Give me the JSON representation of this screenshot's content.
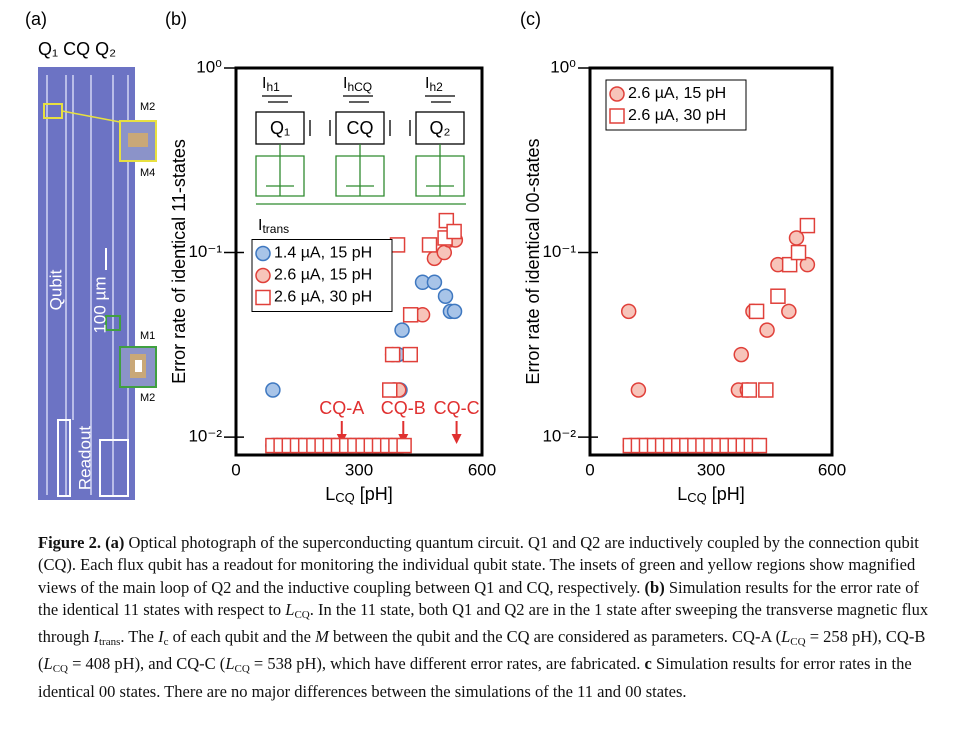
{
  "figure_labels": {
    "a": "(a)",
    "b": "(b)",
    "c": "(c)"
  },
  "photo": {
    "header": "Q₁ CQ Q₂",
    "insets": [
      "M2",
      "M4",
      "M1",
      "M2"
    ],
    "qubit": "Qubit",
    "scale": "100 µm",
    "readout": "Readout"
  },
  "circuit": {
    "bias": [
      {
        "symbol": "I",
        "sub": "h1"
      },
      {
        "symbol": "I",
        "sub": "hCQ"
      },
      {
        "symbol": "I",
        "sub": "h2"
      }
    ],
    "qubits": [
      "Q₁",
      "CQ",
      "Q₂"
    ],
    "transverse": {
      "symbol": "I",
      "sub": "trans"
    }
  },
  "chart_data": [
    {
      "type": "scatter",
      "ylabel": "Error rate of identical 11-states",
      "xlabel": {
        "symbol": "L",
        "sub": "CQ",
        "unit": "[pH]"
      },
      "xlim": [
        0,
        600
      ],
      "xticks": [
        0,
        300,
        600
      ],
      "yscale": "log",
      "ylim": [
        0.008,
        1
      ],
      "yticks": [
        {
          "value": 1,
          "label": "10⁰"
        },
        {
          "value": 0.1,
          "label": "10⁻¹"
        },
        {
          "value": 0.01,
          "label": "10⁻²"
        }
      ],
      "legend": "middle-left",
      "series": [
        {
          "name": "1.4 µA, 15 pH",
          "marker": "circle",
          "color": "#3f78c0",
          "fill": "#a8c4e8",
          "x": [
            90,
            110,
            130,
            150,
            170,
            190,
            210,
            230,
            250,
            270,
            290,
            310,
            330,
            350,
            370,
            390,
            90,
            385,
            400,
            395,
            405,
            455,
            484,
            511,
            523,
            533
          ],
          "values": [
            0.009,
            0.009,
            0.009,
            0.009,
            0.009,
            0.009,
            0.009,
            0.009,
            0.009,
            0.009,
            0.009,
            0.009,
            0.009,
            0.009,
            0.009,
            0.009,
            0.018,
            0.018,
            0.018,
            0.028,
            0.038,
            0.069,
            0.069,
            0.058,
            0.048,
            0.048
          ]
        },
        {
          "name": "2.6 µA, 15 pH",
          "marker": "circle",
          "color": "#e0403a",
          "fill": "#f7c4ba",
          "x": [
            100,
            120,
            140,
            160,
            180,
            200,
            220,
            240,
            260,
            280,
            300,
            320,
            340,
            360,
            380,
            400,
            382,
            387,
            397,
            455,
            484,
            508,
            520,
            535
          ],
          "values": [
            0.009,
            0.009,
            0.009,
            0.009,
            0.009,
            0.009,
            0.009,
            0.009,
            0.009,
            0.009,
            0.009,
            0.009,
            0.009,
            0.009,
            0.009,
            0.009,
            0.028,
            0.018,
            0.018,
            0.046,
            0.093,
            0.1,
            0.117,
            0.117
          ]
        },
        {
          "name": "2.6 µA, 30 pH",
          "marker": "square",
          "color": "#e0403a",
          "fill": "#ffffff",
          "x": [
            90,
            110,
            130,
            150,
            170,
            190,
            210,
            230,
            250,
            270,
            290,
            310,
            330,
            350,
            370,
            390,
            410,
            375,
            382,
            425,
            426,
            394,
            472,
            513,
            510,
            532
          ],
          "values": [
            0.009,
            0.009,
            0.009,
            0.009,
            0.009,
            0.009,
            0.009,
            0.009,
            0.009,
            0.009,
            0.009,
            0.009,
            0.009,
            0.009,
            0.009,
            0.009,
            0.009,
            0.018,
            0.028,
            0.028,
            0.046,
            0.11,
            0.11,
            0.149,
            0.12,
            0.13
          ]
        }
      ],
      "annotation_color": "#e03030",
      "annotations": [
        {
          "text": "CQ-A",
          "x": 258
        },
        {
          "text": "CQ-B",
          "x": 408
        },
        {
          "text": "CQ-C",
          "x": 538
        }
      ]
    },
    {
      "type": "scatter",
      "ylabel": "Error rate of identical 00-states",
      "xlabel": {
        "symbol": "L",
        "sub": "CQ",
        "unit": "[pH]"
      },
      "xlim": [
        0,
        600
      ],
      "xticks": [
        0,
        300,
        600
      ],
      "yscale": "log",
      "ylim": [
        0.008,
        1
      ],
      "yticks": [
        {
          "value": 1,
          "label": "10⁰"
        },
        {
          "value": 0.1,
          "label": "10⁻¹"
        },
        {
          "value": 0.01,
          "label": "10⁻²"
        }
      ],
      "legend": "upper-left",
      "series": [
        {
          "name": "2.6 µA, 15 pH",
          "marker": "circle",
          "color": "#e0403a",
          "fill": "#f7c4ba",
          "x": [
            100,
            120,
            140,
            160,
            180,
            200,
            220,
            240,
            260,
            280,
            300,
            320,
            340,
            360,
            380,
            96,
            120,
            375,
            368,
            390,
            404,
            439,
            493,
            466,
            512,
            539
          ],
          "values": [
            0.009,
            0.009,
            0.009,
            0.009,
            0.009,
            0.009,
            0.009,
            0.009,
            0.009,
            0.009,
            0.009,
            0.009,
            0.009,
            0.009,
            0.009,
            0.048,
            0.018,
            0.028,
            0.018,
            0.018,
            0.048,
            0.038,
            0.048,
            0.086,
            0.12,
            0.086
          ]
        },
        {
          "name": "2.6 µA, 30 pH",
          "marker": "square",
          "color": "#e0403a",
          "fill": "#ffffff",
          "x": [
            100,
            120,
            140,
            160,
            180,
            200,
            220,
            240,
            260,
            280,
            300,
            320,
            340,
            360,
            380,
            400,
            420,
            466,
            495,
            517,
            539,
            413,
            436,
            395
          ],
          "values": [
            0.009,
            0.009,
            0.009,
            0.009,
            0.009,
            0.009,
            0.009,
            0.009,
            0.009,
            0.009,
            0.009,
            0.009,
            0.009,
            0.009,
            0.009,
            0.009,
            0.009,
            0.058,
            0.086,
            0.1,
            0.14,
            0.048,
            0.018,
            0.018
          ]
        }
      ]
    }
  ],
  "caption": [
    "Figure 2.",
    "(a)",
    " Optical photograph of the superconducting quantum circuit. Q1 and Q2 are inductively coupled by the connection qubit (CQ). Each flux qubit has a readout for monitoring the individual qubit state. The insets of green and yellow regions show magnified views of the main loop of Q2 and the inductive coupling between Q1 and CQ, respectively. ",
    "(b)",
    " Simulation results for the error rate of the identical 11 states with respect to ",
    "L",
    "CQ",
    ". In the 11 state, both Q1 and Q2 are in the 1 state after sweeping the transverse magnetic flux through ",
    "I",
    "trans",
    ". The ",
    "I",
    "c",
    " of each qubit and the ",
    "M",
    " between the qubit and the CQ are considered as parameters. CQ-A (",
    "L",
    "CQ",
    " = 258 pH), CQ-B (",
    "L",
    "CQ",
    " = 408 pH), and CQ-C (",
    "L",
    "CQ",
    " = 538 pH), which have different error rates, are fabricated. ",
    "c",
    " Simulation results for error rates in the identical 00 states. There are no major differences between the simulations of the 11 and 00 states."
  ]
}
